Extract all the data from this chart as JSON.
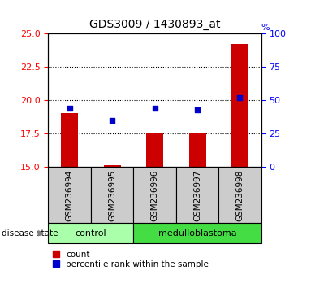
{
  "title": "GDS3009 / 1430893_at",
  "samples": [
    "GSM236994",
    "GSM236995",
    "GSM236996",
    "GSM236997",
    "GSM236998"
  ],
  "groups": [
    "control",
    "control",
    "medulloblastoma",
    "medulloblastoma",
    "medulloblastoma"
  ],
  "red_values": [
    19.0,
    15.15,
    17.6,
    17.5,
    24.2
  ],
  "blue_values": [
    44.0,
    35.0,
    44.0,
    43.0,
    52.0
  ],
  "left_ylim": [
    15,
    25
  ],
  "left_yticks": [
    15,
    17.5,
    20,
    22.5,
    25
  ],
  "right_ylim": [
    0,
    100
  ],
  "right_yticks": [
    0,
    25,
    50,
    75,
    100
  ],
  "red_color": "#cc0000",
  "blue_color": "#0000cc",
  "bar_width": 0.4,
  "control_color": "#aaffaa",
  "medulloblastoma_color": "#44dd44",
  "sample_bg_color": "#cccccc",
  "dotted_yticks": [
    17.5,
    20,
    22.5
  ],
  "legend_red_label": "count",
  "legend_blue_label": "percentile rank within the sample",
  "disease_state_label": "disease state"
}
